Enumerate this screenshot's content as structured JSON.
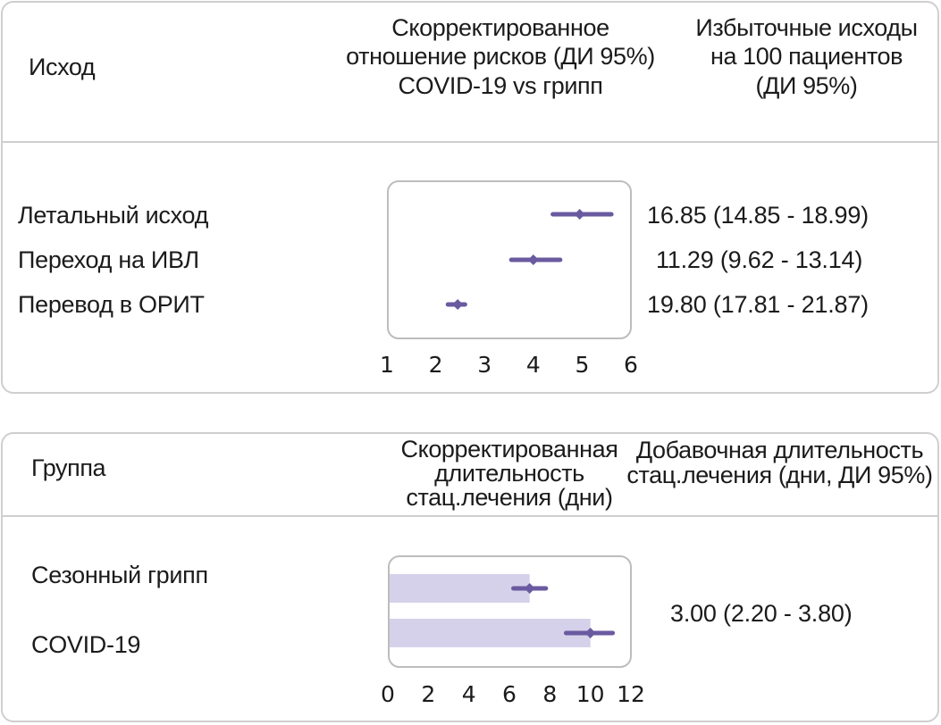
{
  "chart_data": [
    {
      "type": "forest",
      "headers": {
        "label_col": "Исход",
        "effect_col": [
          "Скорректированное",
          "отношение рисков (ДИ 95%)",
          "COVID-19 vs грипп"
        ],
        "value_col": [
          "Избыточные исходы",
          "на 100 пациентов",
          "(ДИ 95%)"
        ]
      },
      "rows": [
        {
          "label": "Летальный исход",
          "estimate": 4.95,
          "ci": [
            4.4,
            5.6
          ],
          "value_text": "16.85 (14.85  -  18.99)"
        },
        {
          "label": "Переход на ИВЛ",
          "estimate": 4.0,
          "ci": [
            3.55,
            4.55
          ],
          "value_text": "11.29 (9.62  -  13.14)"
        },
        {
          "label": "Перевод в ОРИТ",
          "estimate": 2.45,
          "ci": [
            2.25,
            2.6
          ],
          "value_text": "19.80 (17.81  -  21.87)"
        }
      ],
      "xlim": [
        1,
        6
      ],
      "xticks": [
        "1",
        "2",
        "3",
        "4",
        "5",
        "6"
      ]
    },
    {
      "type": "bar",
      "headers": {
        "label_col": "Группа",
        "effect_col": [
          "Скорректированная",
          "длительность",
          "стац.лечения (дни)"
        ],
        "value_col": [
          "Добавочная длительность",
          "стац.лечения (дни, ДИ 95%)"
        ]
      },
      "rows": [
        {
          "label": "Сезонный грипп",
          "value": 7.0,
          "ci": [
            6.2,
            7.8
          ]
        },
        {
          "label": "COVID-19",
          "value": 10.0,
          "ci": [
            8.8,
            11.1
          ]
        }
      ],
      "value_text": "3.00 (2.20  -  3.80)",
      "xlim": [
        0,
        12
      ],
      "xticks": [
        "0",
        "2",
        "4",
        "6",
        "8",
        "10",
        "12"
      ]
    }
  ],
  "colors": {
    "mark": "#6a5aa0",
    "bar": "#d6d1ea",
    "frame": "#cfcfcf",
    "text": "#1b1b1b"
  }
}
